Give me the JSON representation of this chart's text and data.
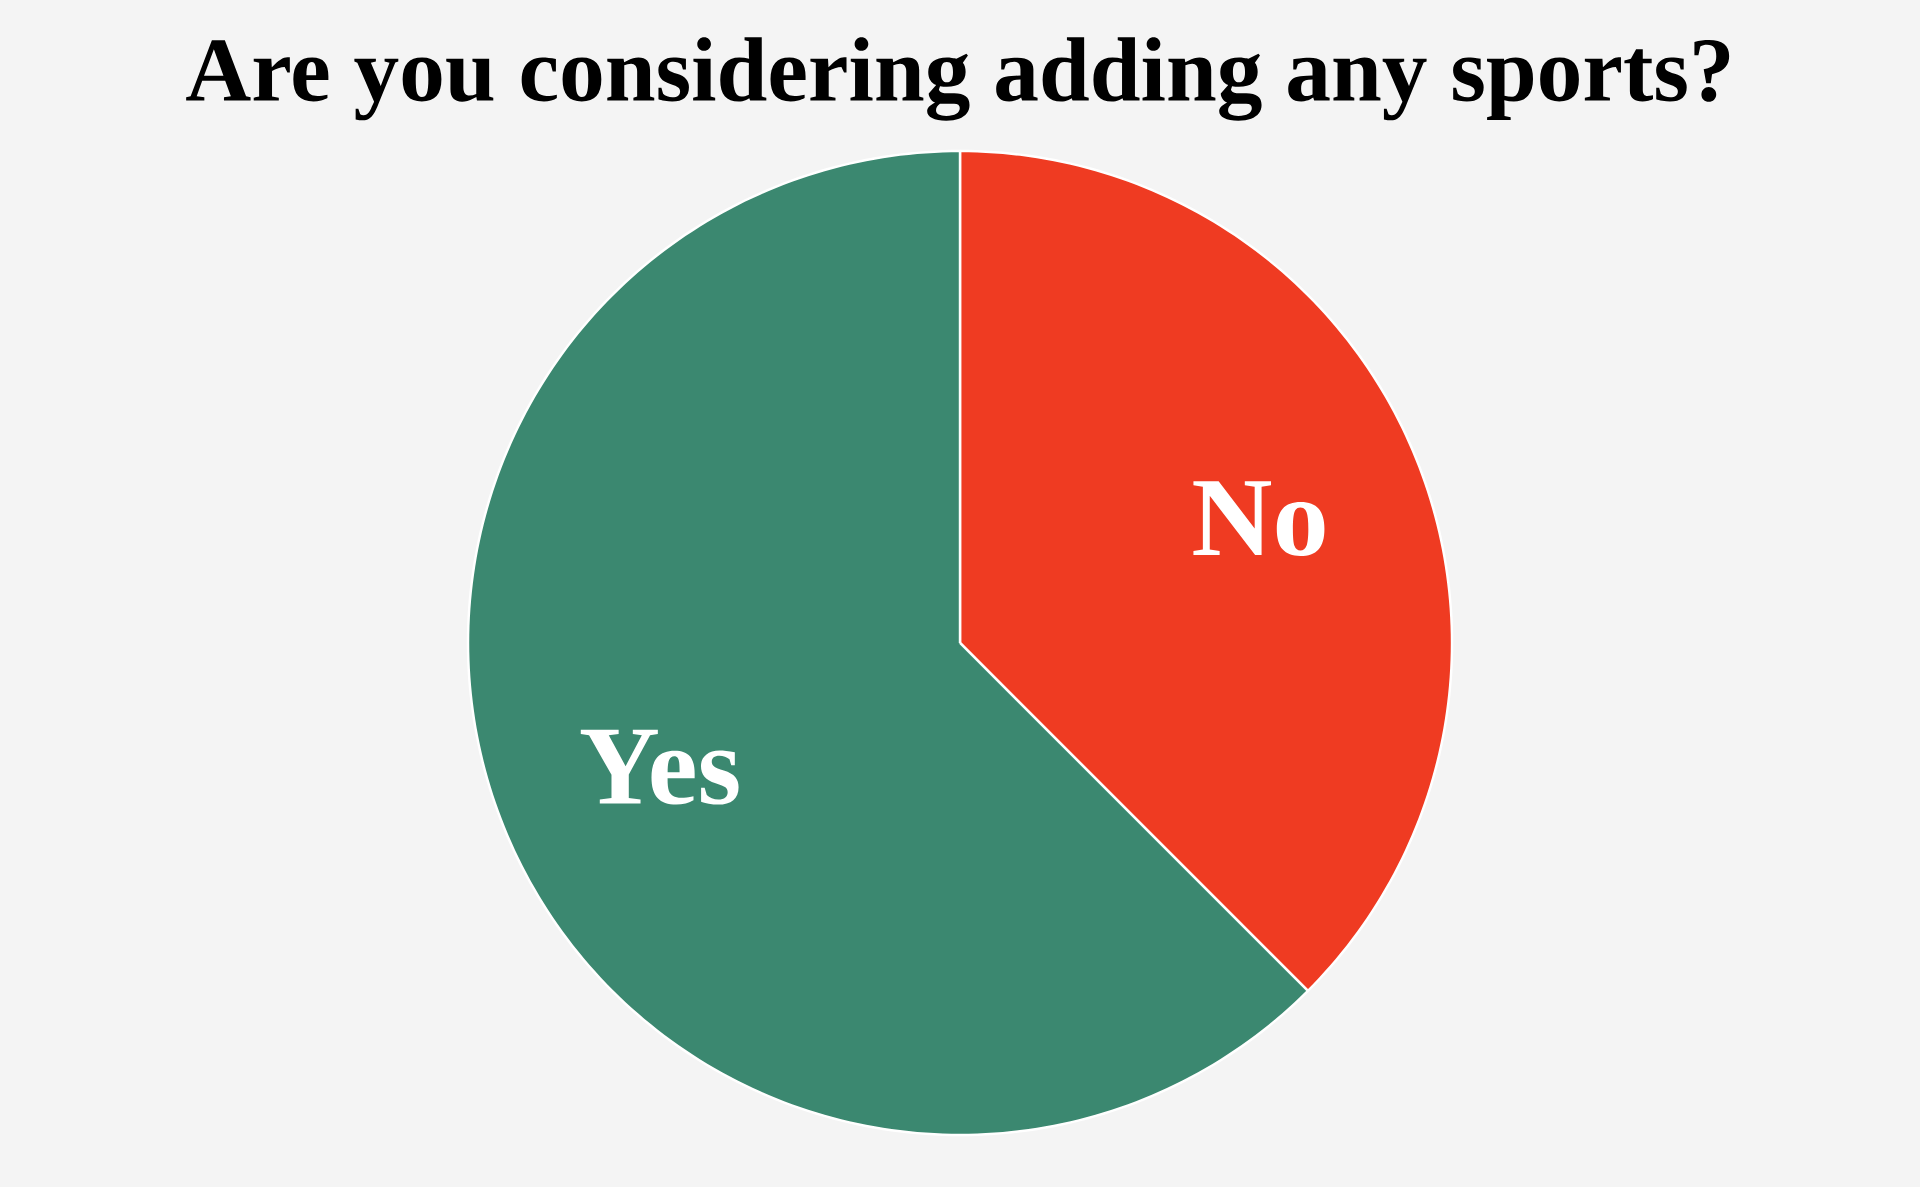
{
  "chart_data": {
    "type": "pie",
    "title": "Are you considering adding any sports?",
    "categories": [
      "No",
      "Yes"
    ],
    "values": [
      37.5,
      62.5
    ],
    "colors": [
      "#ef3b22",
      "#3b8870"
    ]
  }
}
